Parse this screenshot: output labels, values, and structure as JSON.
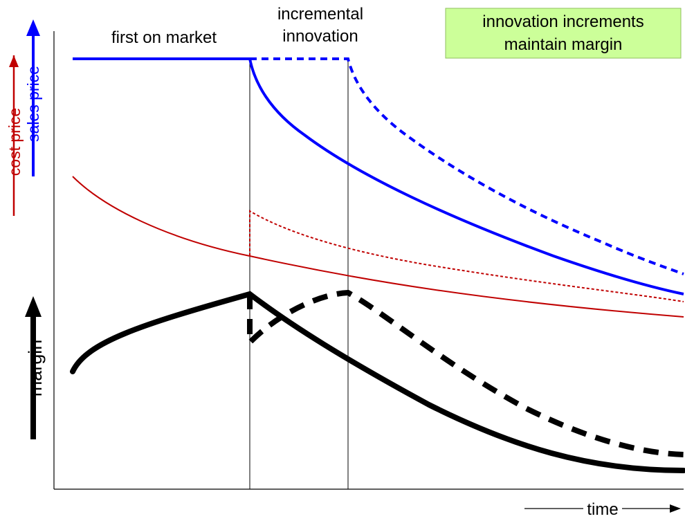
{
  "labels": {
    "first_on_market": "first on market",
    "incremental_line1": "incremental",
    "incremental_line2": "innovation",
    "callout_line1": "innovation increments",
    "callout_line2": "maintain margin",
    "sales_price": "sales price",
    "cost_price": "cost price",
    "margin": "margin",
    "time": "time"
  },
  "colors": {
    "sales_price": "#0000ff",
    "cost_price": "#c00000",
    "margin": "#000000",
    "callout_fill": "#ccff99",
    "callout_border": "#8fbf5f",
    "axes": "#000000"
  }
}
